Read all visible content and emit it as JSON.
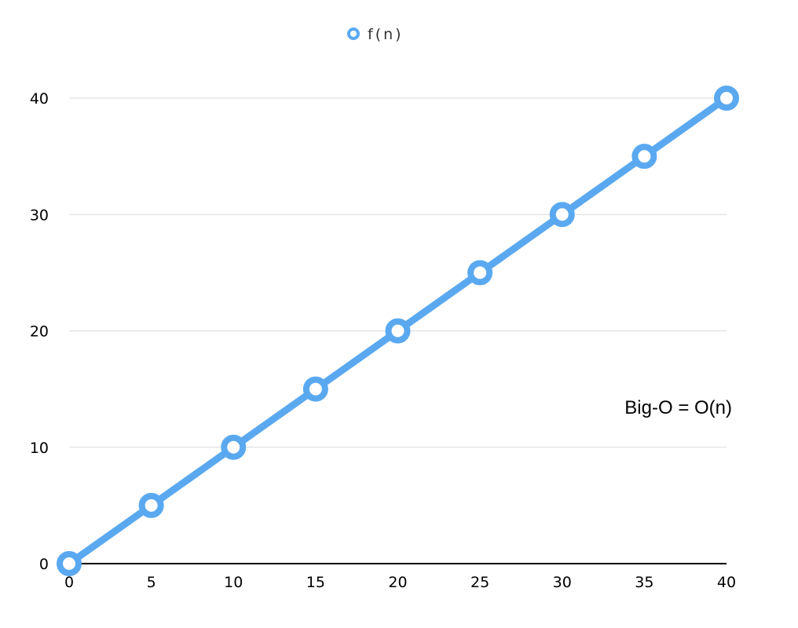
{
  "chart_data": {
    "type": "line",
    "series": [
      {
        "name": "f(n)",
        "x": [
          0,
          5,
          10,
          15,
          20,
          25,
          30,
          35,
          40
        ],
        "y": [
          0,
          5,
          10,
          15,
          20,
          25,
          30,
          35,
          40
        ]
      }
    ],
    "xticks": [
      0,
      5,
      10,
      15,
      20,
      25,
      30,
      35,
      40
    ],
    "yticks": [
      0,
      10,
      20,
      30,
      40
    ],
    "xlim": [
      0,
      40
    ],
    "ylim": [
      0,
      40
    ],
    "grid": "horizontal",
    "legend": "top-center",
    "annotation": "Big-O = O(n)",
    "colors": {
      "series": "#5aa9f0",
      "grid": "#d9d9d9",
      "axis": "#000000"
    }
  }
}
